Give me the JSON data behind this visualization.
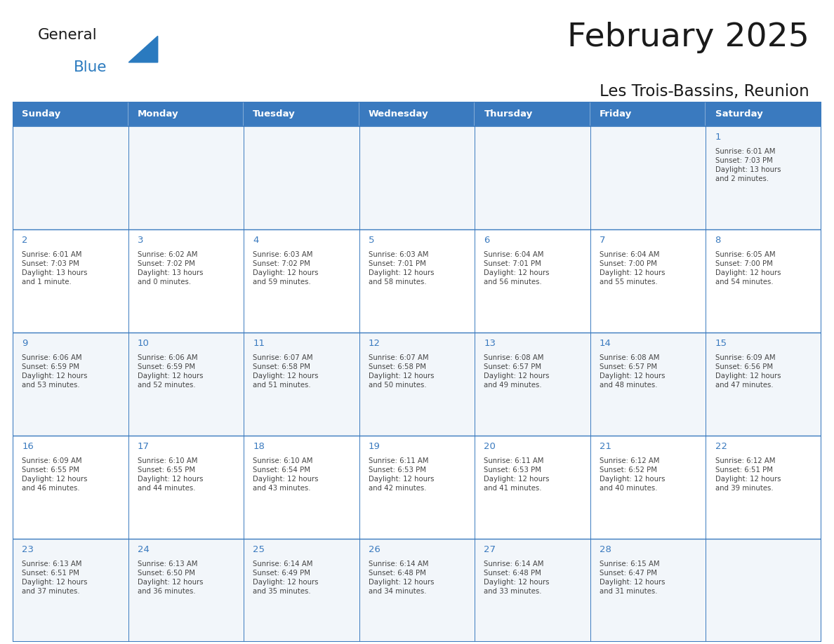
{
  "title": "February 2025",
  "subtitle": "Les Trois-Bassins, Reunion",
  "header_color": "#3a7abf",
  "header_text_color": "#ffffff",
  "row_bg_even": "#f2f6fa",
  "row_bg_odd": "#ffffff",
  "border_color": "#3a7abf",
  "grid_color": "#3a7abf",
  "text_color": "#444444",
  "day_num_color": "#3a7abf",
  "title_color": "#1a1a1a",
  "logo_general_color": "#1a1a1a",
  "logo_blue_color": "#2a7abf",
  "logo_triangle_color": "#2a7abf",
  "days_of_week": [
    "Sunday",
    "Monday",
    "Tuesday",
    "Wednesday",
    "Thursday",
    "Friday",
    "Saturday"
  ],
  "weeks": [
    [
      {
        "day": 0,
        "info": ""
      },
      {
        "day": 0,
        "info": ""
      },
      {
        "day": 0,
        "info": ""
      },
      {
        "day": 0,
        "info": ""
      },
      {
        "day": 0,
        "info": ""
      },
      {
        "day": 0,
        "info": ""
      },
      {
        "day": 1,
        "info": "Sunrise: 6:01 AM\nSunset: 7:03 PM\nDaylight: 13 hours\nand 2 minutes."
      }
    ],
    [
      {
        "day": 2,
        "info": "Sunrise: 6:01 AM\nSunset: 7:03 PM\nDaylight: 13 hours\nand 1 minute."
      },
      {
        "day": 3,
        "info": "Sunrise: 6:02 AM\nSunset: 7:02 PM\nDaylight: 13 hours\nand 0 minutes."
      },
      {
        "day": 4,
        "info": "Sunrise: 6:03 AM\nSunset: 7:02 PM\nDaylight: 12 hours\nand 59 minutes."
      },
      {
        "day": 5,
        "info": "Sunrise: 6:03 AM\nSunset: 7:01 PM\nDaylight: 12 hours\nand 58 minutes."
      },
      {
        "day": 6,
        "info": "Sunrise: 6:04 AM\nSunset: 7:01 PM\nDaylight: 12 hours\nand 56 minutes."
      },
      {
        "day": 7,
        "info": "Sunrise: 6:04 AM\nSunset: 7:00 PM\nDaylight: 12 hours\nand 55 minutes."
      },
      {
        "day": 8,
        "info": "Sunrise: 6:05 AM\nSunset: 7:00 PM\nDaylight: 12 hours\nand 54 minutes."
      }
    ],
    [
      {
        "day": 9,
        "info": "Sunrise: 6:06 AM\nSunset: 6:59 PM\nDaylight: 12 hours\nand 53 minutes."
      },
      {
        "day": 10,
        "info": "Sunrise: 6:06 AM\nSunset: 6:59 PM\nDaylight: 12 hours\nand 52 minutes."
      },
      {
        "day": 11,
        "info": "Sunrise: 6:07 AM\nSunset: 6:58 PM\nDaylight: 12 hours\nand 51 minutes."
      },
      {
        "day": 12,
        "info": "Sunrise: 6:07 AM\nSunset: 6:58 PM\nDaylight: 12 hours\nand 50 minutes."
      },
      {
        "day": 13,
        "info": "Sunrise: 6:08 AM\nSunset: 6:57 PM\nDaylight: 12 hours\nand 49 minutes."
      },
      {
        "day": 14,
        "info": "Sunrise: 6:08 AM\nSunset: 6:57 PM\nDaylight: 12 hours\nand 48 minutes."
      },
      {
        "day": 15,
        "info": "Sunrise: 6:09 AM\nSunset: 6:56 PM\nDaylight: 12 hours\nand 47 minutes."
      }
    ],
    [
      {
        "day": 16,
        "info": "Sunrise: 6:09 AM\nSunset: 6:55 PM\nDaylight: 12 hours\nand 46 minutes."
      },
      {
        "day": 17,
        "info": "Sunrise: 6:10 AM\nSunset: 6:55 PM\nDaylight: 12 hours\nand 44 minutes."
      },
      {
        "day": 18,
        "info": "Sunrise: 6:10 AM\nSunset: 6:54 PM\nDaylight: 12 hours\nand 43 minutes."
      },
      {
        "day": 19,
        "info": "Sunrise: 6:11 AM\nSunset: 6:53 PM\nDaylight: 12 hours\nand 42 minutes."
      },
      {
        "day": 20,
        "info": "Sunrise: 6:11 AM\nSunset: 6:53 PM\nDaylight: 12 hours\nand 41 minutes."
      },
      {
        "day": 21,
        "info": "Sunrise: 6:12 AM\nSunset: 6:52 PM\nDaylight: 12 hours\nand 40 minutes."
      },
      {
        "day": 22,
        "info": "Sunrise: 6:12 AM\nSunset: 6:51 PM\nDaylight: 12 hours\nand 39 minutes."
      }
    ],
    [
      {
        "day": 23,
        "info": "Sunrise: 6:13 AM\nSunset: 6:51 PM\nDaylight: 12 hours\nand 37 minutes."
      },
      {
        "day": 24,
        "info": "Sunrise: 6:13 AM\nSunset: 6:50 PM\nDaylight: 12 hours\nand 36 minutes."
      },
      {
        "day": 25,
        "info": "Sunrise: 6:14 AM\nSunset: 6:49 PM\nDaylight: 12 hours\nand 35 minutes."
      },
      {
        "day": 26,
        "info": "Sunrise: 6:14 AM\nSunset: 6:48 PM\nDaylight: 12 hours\nand 34 minutes."
      },
      {
        "day": 27,
        "info": "Sunrise: 6:14 AM\nSunset: 6:48 PM\nDaylight: 12 hours\nand 33 minutes."
      },
      {
        "day": 28,
        "info": "Sunrise: 6:15 AM\nSunset: 6:47 PM\nDaylight: 12 hours\nand 31 minutes."
      },
      {
        "day": 0,
        "info": ""
      }
    ]
  ]
}
